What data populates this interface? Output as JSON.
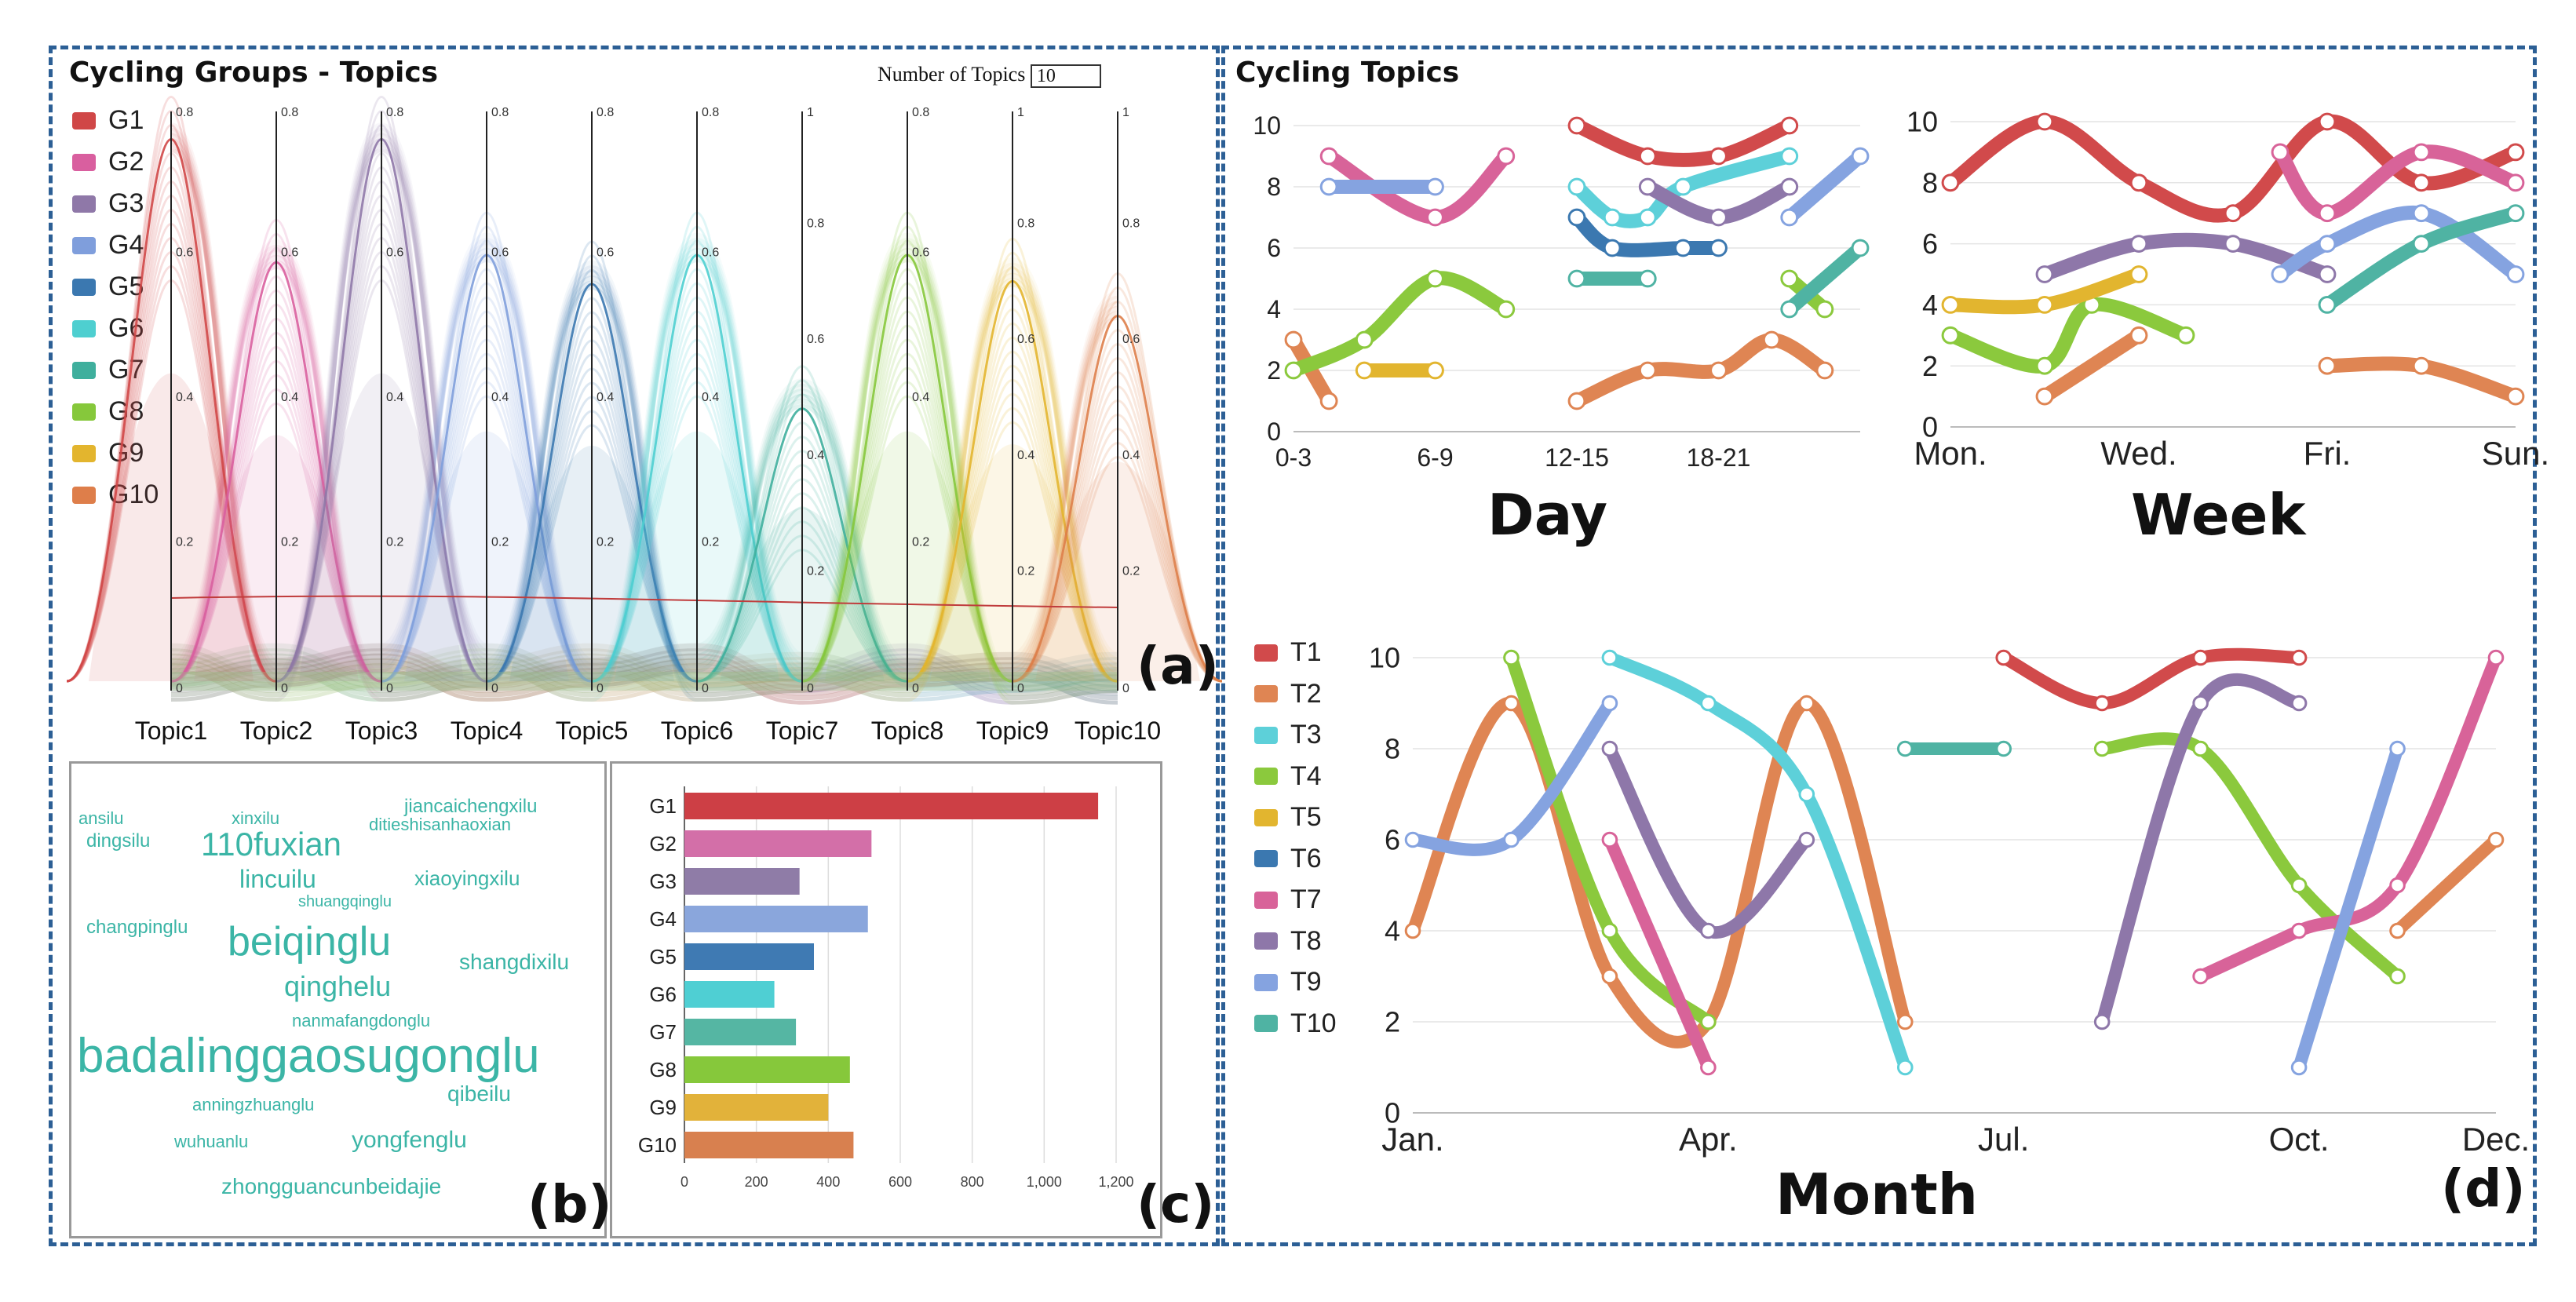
{
  "panel_a": {
    "title": "Cycling Groups - Topics",
    "num_topics_label": "Number of Topics",
    "num_topics_value": "10",
    "label": "(a)",
    "legend": [
      {
        "name": "G1",
        "color": "#d04747"
      },
      {
        "name": "G2",
        "color": "#d95f9f"
      },
      {
        "name": "G3",
        "color": "#8f78a8"
      },
      {
        "name": "G4",
        "color": "#7f9edc"
      },
      {
        "name": "G5",
        "color": "#3b78b0"
      },
      {
        "name": "G6",
        "color": "#4ecfd0"
      },
      {
        "name": "G7",
        "color": "#3faf9d"
      },
      {
        "name": "G8",
        "color": "#86c83b"
      },
      {
        "name": "G9",
        "color": "#e3b52e"
      },
      {
        "name": "G10",
        "color": "#de7e4a"
      }
    ],
    "axes": [
      {
        "name": "Topic1",
        "max": "0.8"
      },
      {
        "name": "Topic2",
        "max": "0.8"
      },
      {
        "name": "Topic3",
        "max": "0.8"
      },
      {
        "name": "Topic4",
        "max": "0.8"
      },
      {
        "name": "Topic5",
        "max": "0.8"
      },
      {
        "name": "Topic6",
        "max": "0.8"
      },
      {
        "name": "Topic7",
        "max": "1"
      },
      {
        "name": "Topic8",
        "max": "0.8"
      },
      {
        "name": "Topic9",
        "max": "1"
      },
      {
        "name": "Topic10",
        "max": "1"
      }
    ]
  },
  "panel_b": {
    "label": "(b)",
    "words": [
      {
        "text": "ansilu",
        "size": 22
      },
      {
        "text": "xinxilu",
        "size": 22
      },
      {
        "text": "jiancaichengxilu",
        "size": 24
      },
      {
        "text": "ditieshisanhaoxian",
        "size": 22
      },
      {
        "text": "dingsilu",
        "size": 24
      },
      {
        "text": "110fuxian",
        "size": 42
      },
      {
        "text": "lincuilu",
        "size": 32
      },
      {
        "text": "xiaoyingxilu",
        "size": 26
      },
      {
        "text": "shuangqinglu",
        "size": 20
      },
      {
        "text": "changpinglu",
        "size": 24
      },
      {
        "text": "beiqinglu",
        "size": 52
      },
      {
        "text": "shangdixilu",
        "size": 28
      },
      {
        "text": "qinghelu",
        "size": 36
      },
      {
        "text": "nanmafangdonglu",
        "size": 22
      },
      {
        "text": "badalinggaosugonglu",
        "size": 62
      },
      {
        "text": "anningzhuanglu",
        "size": 22
      },
      {
        "text": "qibeilu",
        "size": 28
      },
      {
        "text": "wuhuanlu",
        "size": 22
      },
      {
        "text": "yongfenglu",
        "size": 30
      },
      {
        "text": "zhongguancunbeidajie",
        "size": 28
      }
    ]
  },
  "panel_c": {
    "label": "(c)",
    "chart_data": {
      "type": "bar",
      "orientation": "horizontal",
      "categories": [
        "G1",
        "G2",
        "G3",
        "G4",
        "G5",
        "G6",
        "G7",
        "G8",
        "G9",
        "G10"
      ],
      "values": [
        1150,
        520,
        320,
        510,
        360,
        250,
        310,
        460,
        400,
        470
      ],
      "colors": [
        "#cd3f45",
        "#d36fa8",
        "#8f7ca7",
        "#8aa6dc",
        "#3f7ab3",
        "#4fcfd3",
        "#55b6a3",
        "#86c83b",
        "#e2b23a",
        "#d8804f"
      ],
      "xlim": [
        0,
        1200
      ],
      "xticks": [
        "0",
        "200",
        "400",
        "600",
        "800",
        "1,000",
        "1,200"
      ]
    }
  },
  "panel_d": {
    "title": "Cycling Topics",
    "label": "(d)",
    "colors": {
      "T1": "#d14a4b",
      "T2": "#df8553",
      "T3": "#5dd0d9",
      "T4": "#8bc93d",
      "T5": "#e2b52f",
      "T6": "#3b78b0",
      "T7": "#d86399",
      "T8": "#8e77a9",
      "T9": "#85a3e0",
      "T10": "#4fb3a3"
    },
    "legend": [
      "T1",
      "T2",
      "T3",
      "T4",
      "T5",
      "T6",
      "T7",
      "T8",
      "T9",
      "T10"
    ],
    "day": {
      "xlabel": "Day",
      "xticks": [
        "0-3",
        "6-9",
        "12-15",
        "18-21"
      ],
      "yticks": [
        "0",
        "2",
        "4",
        "6",
        "8",
        "10"
      ],
      "series": [
        {
          "t": "T1",
          "pts": [
            [
              4,
              10
            ],
            [
              5,
              9
            ],
            [
              6,
              9
            ],
            [
              7,
              10
            ]
          ]
        },
        {
          "t": "T2",
          "pts": [
            [
              0,
              3
            ],
            [
              0.5,
              1
            ]
          ]
        },
        {
          "t": "T2",
          "pts": [
            [
              4,
              1
            ],
            [
              5,
              2
            ],
            [
              6,
              2
            ],
            [
              6.75,
              3
            ],
            [
              7.5,
              2
            ]
          ]
        },
        {
          "t": "T3",
          "pts": [
            [
              4,
              8
            ],
            [
              4.5,
              7
            ],
            [
              5,
              7
            ],
            [
              5.5,
              8
            ],
            [
              7,
              9
            ]
          ]
        },
        {
          "t": "T4",
          "pts": [
            [
              0,
              2
            ],
            [
              1,
              3
            ],
            [
              2,
              5
            ],
            [
              3,
              4
            ]
          ]
        },
        {
          "t": "T4",
          "pts": [
            [
              7,
              5
            ],
            [
              7.5,
              4
            ]
          ]
        },
        {
          "t": "T5",
          "pts": [
            [
              1,
              2
            ],
            [
              2,
              2
            ]
          ]
        },
        {
          "t": "T6",
          "pts": [
            [
              4,
              7
            ],
            [
              4.5,
              6
            ],
            [
              5.5,
              6
            ],
            [
              6,
              6
            ]
          ]
        },
        {
          "t": "T7",
          "pts": [
            [
              0.5,
              9
            ],
            [
              2,
              7
            ],
            [
              3,
              9
            ]
          ]
        },
        {
          "t": "T8",
          "pts": [
            [
              5,
              8
            ],
            [
              6,
              7
            ],
            [
              7,
              8
            ]
          ]
        },
        {
          "t": "T9",
          "pts": [
            [
              0.5,
              8
            ],
            [
              2,
              8
            ]
          ]
        },
        {
          "t": "T9",
          "pts": [
            [
              7,
              7
            ],
            [
              8,
              9
            ]
          ]
        },
        {
          "t": "T10",
          "pts": [
            [
              4,
              5
            ],
            [
              5,
              5
            ]
          ]
        },
        {
          "t": "T10",
          "pts": [
            [
              7,
              4
            ],
            [
              8,
              6
            ]
          ]
        }
      ]
    },
    "week": {
      "xlabel": "Week",
      "xticks": [
        "Mon.",
        "Wed.",
        "Fri.",
        "Sun."
      ],
      "yticks": [
        "0",
        "2",
        "4",
        "6",
        "8",
        "10"
      ],
      "series": [
        {
          "t": "T1",
          "pts": [
            [
              0,
              8
            ],
            [
              1,
              10
            ],
            [
              2,
              8
            ],
            [
              3,
              7
            ],
            [
              4,
              10
            ],
            [
              5,
              8
            ],
            [
              6,
              9
            ]
          ]
        },
        {
          "t": "T2",
          "pts": [
            [
              1,
              1
            ],
            [
              2,
              3
            ]
          ]
        },
        {
          "t": "T2",
          "pts": [
            [
              4,
              2
            ],
            [
              5,
              2
            ],
            [
              6,
              1
            ]
          ]
        },
        {
          "t": "T4",
          "pts": [
            [
              0,
              3
            ],
            [
              1,
              2
            ],
            [
              1.5,
              4
            ],
            [
              2.5,
              3
            ]
          ]
        },
        {
          "t": "T5",
          "pts": [
            [
              0,
              4
            ],
            [
              1,
              4
            ],
            [
              2,
              5
            ]
          ]
        },
        {
          "t": "T7",
          "pts": [
            [
              3.5,
              9
            ],
            [
              4,
              7
            ],
            [
              5,
              9
            ],
            [
              6,
              8
            ]
          ]
        },
        {
          "t": "T8",
          "pts": [
            [
              1,
              5
            ],
            [
              2,
              6
            ],
            [
              3,
              6
            ],
            [
              4,
              5
            ]
          ]
        },
        {
          "t": "T9",
          "pts": [
            [
              3.5,
              5
            ],
            [
              4,
              6
            ],
            [
              5,
              7
            ],
            [
              6,
              5
            ]
          ]
        },
        {
          "t": "T10",
          "pts": [
            [
              4,
              4
            ],
            [
              5,
              6
            ],
            [
              6,
              7
            ]
          ]
        }
      ]
    },
    "month": {
      "xlabel": "Month",
      "xticks": [
        "Jan.",
        "Apr.",
        "Jul.",
        "Oct.",
        "Dec."
      ],
      "yticks": [
        "0",
        "2",
        "4",
        "6",
        "8",
        "10"
      ],
      "series": [
        {
          "t": "T1",
          "pts": [
            [
              6,
              10
            ],
            [
              7,
              9
            ],
            [
              8,
              10
            ],
            [
              9,
              10
            ]
          ]
        },
        {
          "t": "T2",
          "pts": [
            [
              0,
              4
            ],
            [
              1,
              9
            ],
            [
              2,
              3
            ],
            [
              3,
              2
            ],
            [
              4,
              9
            ],
            [
              5,
              2
            ]
          ]
        },
        {
          "t": "T2",
          "pts": [
            [
              10,
              4
            ],
            [
              11,
              6
            ]
          ]
        },
        {
          "t": "T3",
          "pts": [
            [
              2,
              10
            ],
            [
              3,
              9
            ],
            [
              4,
              7
            ],
            [
              5,
              1
            ]
          ]
        },
        {
          "t": "T4",
          "pts": [
            [
              1,
              10
            ],
            [
              2,
              4
            ],
            [
              3,
              2
            ]
          ]
        },
        {
          "t": "T4",
          "pts": [
            [
              7,
              8
            ],
            [
              8,
              8
            ],
            [
              9,
              5
            ],
            [
              10,
              3
            ]
          ]
        },
        {
          "t": "T7",
          "pts": [
            [
              2,
              6
            ],
            [
              3,
              1
            ]
          ]
        },
        {
          "t": "T7",
          "pts": [
            [
              8,
              3
            ],
            [
              9,
              4
            ],
            [
              10,
              5
            ],
            [
              11,
              10
            ]
          ]
        },
        {
          "t": "T8",
          "pts": [
            [
              2,
              8
            ],
            [
              3,
              4
            ],
            [
              4,
              6
            ]
          ]
        },
        {
          "t": "T8",
          "pts": [
            [
              7,
              2
            ],
            [
              8,
              9
            ],
            [
              9,
              9
            ]
          ]
        },
        {
          "t": "T9",
          "pts": [
            [
              0,
              6
            ],
            [
              1,
              6
            ],
            [
              2,
              9
            ]
          ]
        },
        {
          "t": "T9",
          "pts": [
            [
              9,
              1
            ],
            [
              10,
              8
            ]
          ]
        },
        {
          "t": "T10",
          "pts": [
            [
              5,
              8
            ],
            [
              6,
              8
            ]
          ]
        }
      ]
    }
  }
}
